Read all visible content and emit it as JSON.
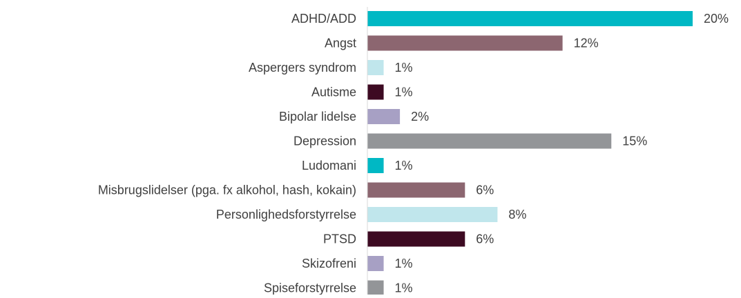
{
  "chart_data": {
    "type": "bar",
    "orientation": "horizontal",
    "categories": [
      "ADHD/ADD",
      "Angst",
      "Aspergers syndrom",
      "Autisme",
      "Bipolar lidelse",
      "Depression",
      "Ludomani",
      "Misbrugslidelser (pga. fx alkohol, hash, kokain)",
      "Personlighedsforstyrrelse",
      "PTSD",
      "Skizofreni",
      "Spiseforstyrrelse"
    ],
    "values": [
      20,
      12,
      1,
      1,
      2,
      15,
      1,
      6,
      8,
      6,
      1,
      1
    ],
    "value_labels": [
      "20%",
      "12%",
      "1%",
      "1%",
      "2%",
      "15%",
      "1%",
      "6%",
      "8%",
      "6%",
      "1%",
      "1%"
    ],
    "colors": [
      "#00b8c4",
      "#8c6670",
      "#c0e6ec",
      "#3d0a22",
      "#a7a0c4",
      "#939598",
      "#00b8c4",
      "#8c6670",
      "#c0e6ec",
      "#3d0a22",
      "#a7a0c4",
      "#939598"
    ],
    "xlim": [
      0,
      20
    ]
  }
}
